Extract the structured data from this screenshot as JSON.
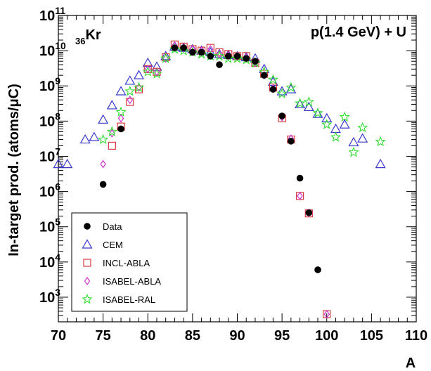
{
  "chart_data": {
    "type": "scatter",
    "element_label": {
      "pre": "36",
      "main": "Kr"
    },
    "reaction": "p(1.4 GeV) + U",
    "xlabel": "A",
    "ylabel": "In-target prod. (atoms/μC)",
    "xlim": [
      70,
      110
    ],
    "ylim": [
      200,
      100000000000
    ],
    "y_scale": "log",
    "x_ticks": [
      70,
      75,
      80,
      85,
      90,
      95,
      100,
      105,
      110
    ],
    "y_ticks": [
      {
        "value": 1000,
        "base": "10",
        "exp": "3"
      },
      {
        "value": 10000,
        "base": "10",
        "exp": "4"
      },
      {
        "value": 100000,
        "base": "10",
        "exp": "5"
      },
      {
        "value": 1000000,
        "base": "10",
        "exp": "6"
      },
      {
        "value": 10000000,
        "base": "10",
        "exp": "7"
      },
      {
        "value": 100000000,
        "base": "10",
        "exp": "8"
      },
      {
        "value": 1000000000,
        "base": "10",
        "exp": "9"
      },
      {
        "value": 10000000000,
        "base": "10",
        "exp": "10"
      },
      {
        "value": 100000000000,
        "base": "10",
        "exp": "11"
      }
    ],
    "legend_position": "bottom-left",
    "series": [
      {
        "name": "Data",
        "marker": "filled-circle",
        "color": "#000000",
        "points": [
          [
            75,
            1600000.0
          ],
          [
            77,
            60000000.0
          ],
          [
            83,
            12000000000.0
          ],
          [
            84,
            12000000000.0
          ],
          [
            85,
            9000000000.0
          ],
          [
            86,
            9000000000.0
          ],
          [
            87,
            7000000000.0
          ],
          [
            88,
            4000000000.0
          ],
          [
            89,
            7000000000.0
          ],
          [
            90,
            7000000000.0
          ],
          [
            91,
            6000000000.0
          ],
          [
            92,
            5000000000.0
          ],
          [
            93,
            2000000000.0
          ],
          [
            94,
            800000000.0
          ],
          [
            95,
            140000000.0
          ],
          [
            96,
            27000000.0
          ],
          [
            97,
            2400000.0
          ],
          [
            98,
            250000.0
          ],
          [
            99,
            6000.0
          ]
        ]
      },
      {
        "name": "CEM",
        "marker": "open-triangle",
        "color": "#3a3acd",
        "points": [
          [
            70,
            6000000.0
          ],
          [
            71,
            6000000.0
          ],
          [
            73,
            30000000.0
          ],
          [
            74,
            35000000.0
          ],
          [
            75,
            110000000.0
          ],
          [
            76,
            280000000.0
          ],
          [
            77,
            700000000.0
          ],
          [
            78,
            1400000000.0
          ],
          [
            79,
            2000000000.0
          ],
          [
            80,
            4500000000.0
          ],
          [
            81,
            3500000000.0
          ],
          [
            82,
            7000000000.0
          ],
          [
            83,
            13000000000.0
          ],
          [
            84,
            12000000000.0
          ],
          [
            85,
            11000000000.0
          ],
          [
            86,
            10000000000.0
          ],
          [
            87,
            9000000000.0
          ],
          [
            88,
            8000000000.0
          ],
          [
            89,
            7500000000.0
          ],
          [
            90,
            7000000000.0
          ],
          [
            91,
            6500000000.0
          ],
          [
            92,
            6000000000.0
          ],
          [
            93,
            3000000000.0
          ],
          [
            94,
            1300000000.0
          ],
          [
            95,
            700000000.0
          ],
          [
            96,
            800000000.0
          ],
          [
            97,
            300000000.0
          ],
          [
            98,
            250000000.0
          ],
          [
            99,
            160000000.0
          ],
          [
            100,
            120000000.0
          ],
          [
            101,
            60000000.0
          ],
          [
            102,
            80000000.0
          ],
          [
            103,
            25000000.0
          ],
          [
            104,
            32000000.0
          ],
          [
            106,
            6000000.0
          ]
        ]
      },
      {
        "name": "INCL-ABLA",
        "marker": "open-square",
        "color": "#d7393f",
        "points": [
          [
            76,
            20000000.0
          ],
          [
            77,
            70000000.0
          ],
          [
            78,
            350000000.0
          ],
          [
            79,
            800000000.0
          ],
          [
            80,
            3000000000.0
          ],
          [
            81,
            2500000000.0
          ],
          [
            82,
            6500000000.0
          ],
          [
            83,
            15000000000.0
          ],
          [
            84,
            13000000000.0
          ],
          [
            85,
            11000000000.0
          ],
          [
            86,
            10000000000.0
          ],
          [
            87,
            12000000000.0
          ],
          [
            88,
            9000000000.0
          ],
          [
            89,
            8000000000.0
          ],
          [
            90,
            7000000000.0
          ],
          [
            91,
            7000000000.0
          ],
          [
            92,
            4500000000.0
          ],
          [
            93,
            2200000000.0
          ],
          [
            94,
            900000000.0
          ],
          [
            95,
            120000000.0
          ],
          [
            96,
            30000000.0
          ],
          [
            97,
            750000.0
          ],
          [
            98,
            240000.0
          ],
          [
            100,
            330
          ]
        ]
      },
      {
        "name": "ISABEL-ABLA",
        "marker": "open-diamond",
        "color": "#cc33cc",
        "points": [
          [
            75,
            6000000.0
          ],
          [
            76,
            45000000.0
          ],
          [
            77,
            120000000.0
          ],
          [
            78,
            400000000.0
          ],
          [
            79,
            900000000.0
          ],
          [
            80,
            3000000000.0
          ],
          [
            81,
            2500000000.0
          ],
          [
            82,
            6000000000.0
          ],
          [
            83,
            14000000000.0
          ],
          [
            84,
            12000000000.0
          ],
          [
            85,
            11000000000.0
          ],
          [
            86,
            10000000000.0
          ],
          [
            87,
            11000000000.0
          ],
          [
            88,
            8000000000.0
          ],
          [
            89,
            7500000000.0
          ],
          [
            90,
            7000000000.0
          ],
          [
            91,
            6500000000.0
          ],
          [
            92,
            4500000000.0
          ],
          [
            93,
            2000000000.0
          ],
          [
            94,
            850000000.0
          ],
          [
            95,
            130000000.0
          ],
          [
            96,
            32000000.0
          ],
          [
            97,
            750000.0
          ],
          [
            98,
            250000.0
          ],
          [
            100,
            330
          ]
        ]
      },
      {
        "name": "ISABEL-RAL",
        "marker": "open-star",
        "color": "#33dd33",
        "points": [
          [
            75,
            30000000.0
          ],
          [
            76,
            50000000.0
          ],
          [
            77,
            180000000.0
          ],
          [
            78,
            700000000.0
          ],
          [
            79,
            900000000.0
          ],
          [
            80,
            2500000000.0
          ],
          [
            81,
            2200000000.0
          ],
          [
            82,
            6000000000.0
          ],
          [
            83,
            11000000000.0
          ],
          [
            84,
            10000000000.0
          ],
          [
            85,
            9000000000.0
          ],
          [
            86,
            8000000000.0
          ],
          [
            87,
            7000000000.0
          ],
          [
            88,
            7000000000.0
          ],
          [
            89,
            6000000000.0
          ],
          [
            90,
            6000000000.0
          ],
          [
            91,
            5500000000.0
          ],
          [
            92,
            4500000000.0
          ],
          [
            93,
            2500000000.0
          ],
          [
            94,
            1500000000.0
          ],
          [
            95,
            600000000.0
          ],
          [
            96,
            900000000.0
          ],
          [
            97,
            320000000.0
          ],
          [
            98,
            350000000.0
          ],
          [
            99,
            170000000.0
          ],
          [
            100,
            80000000.0
          ],
          [
            101,
            35000000.0
          ],
          [
            102,
            130000000.0
          ],
          [
            103,
            13000000.0
          ],
          [
            104,
            65000000.0
          ],
          [
            106,
            26000000.0
          ]
        ]
      }
    ]
  }
}
